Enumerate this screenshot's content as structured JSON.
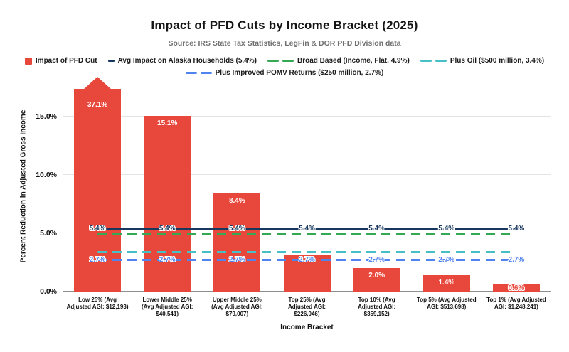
{
  "title": "Impact of PFD Cuts by Income Bracket (2025)",
  "subtitle": "Source: IRS State Tax Statistics, LegFin & DOR PFD Division data",
  "colors": {
    "bar_red": "#E8473C",
    "navy": "#17375E",
    "green": "#34A853",
    "cyan": "#46BFC7",
    "blue": "#4F83EE",
    "grid": "#E4E4E4",
    "axis": "#8F8F8F",
    "subtitle_gray": "#717171"
  },
  "legend": {
    "items": [
      {
        "row": 0,
        "marker": "square",
        "color": "#E8473C",
        "label": "Impact of PFD Cut"
      },
      {
        "row": 0,
        "marker": "line",
        "color": "#17375E",
        "label": "Avg Impact on Alaska Households (5.4%)"
      },
      {
        "row": 0,
        "marker": "dashes",
        "color": "#34A853",
        "label": "Broad Based (Income, Flat, 4.9%)"
      },
      {
        "row": 0,
        "marker": "dashes",
        "color": "#46BFC7",
        "label": "Plus Oil ($500 million, 3.4%)"
      },
      {
        "row": 1,
        "marker": "dashes",
        "color": "#4F83EE",
        "label": "Plus Improved POMV Returns ($250 million, 2.7%)"
      }
    ]
  },
  "axes": {
    "y_title": "Percent Reduction in Adjusted Gross Income",
    "x_title": "Income Bracket"
  },
  "chart_data": {
    "type": "bar",
    "title": "Impact of PFD Cuts by Income Bracket (2025)",
    "xlabel": "Income Bracket",
    "ylabel": "Percent Reduction in Adjusted Gross Income",
    "ylim": [
      0,
      18
    ],
    "grid": true,
    "legend_position": "top",
    "y_ticks": [
      {
        "value": 0,
        "label": "0.0%"
      },
      {
        "value": 5,
        "label": "5.0%"
      },
      {
        "value": 10,
        "label": "10.0%"
      },
      {
        "value": 15,
        "label": "15.0%"
      }
    ],
    "categories": [
      [
        "Low 25% (Avg",
        "Adjusted AGI: $12,193)"
      ],
      [
        "Lower Middle 25%",
        "(Avg Adjusted AGI:",
        "$40,541)"
      ],
      [
        "Upper Middle 25%",
        "(Avg Adjusted AGI:",
        "$79,007)"
      ],
      [
        "Top 25% (Avg",
        "Adjusted AGI:",
        "$226,046)"
      ],
      [
        "Top 10% (Avg",
        "Adjusted AGI:",
        "$359,152)"
      ],
      [
        "Top 5% (Avg Adjusted",
        "AGI: $513,698)"
      ],
      [
        "Top 1% (Avg Adjusted",
        "AGI: $1,248,241)"
      ]
    ],
    "series_name": "Impact of PFD Cut",
    "values": [
      37.1,
      15.1,
      8.4,
      3.1,
      2.0,
      1.4,
      0.6
    ],
    "bar_labels": [
      "37.1%",
      "15.1%",
      "8.4%",
      "",
      "2.0%",
      "1.4%",
      "0.6%"
    ],
    "bar_color": "#E8473C",
    "truncated_bar": {
      "index": 0,
      "shown_up_to_pct": 17.4,
      "indicator": "up-arrow"
    },
    "reference_lines": [
      {
        "name": "Avg Impact on Alaska Households",
        "value": 5.4,
        "style": "solid",
        "color": "#17375E",
        "line_label": "5.4%"
      },
      {
        "name": "Broad Based (Income, Flat)",
        "value": 4.9,
        "style": "dashed",
        "color": "#34A853"
      },
      {
        "name": "Plus Oil ($500 million)",
        "value": 3.4,
        "style": "dashed",
        "color": "#46BFC7"
      },
      {
        "name": "Plus Improved POMV Returns ($250 million)",
        "value": 2.7,
        "style": "dashed",
        "color": "#4F83EE",
        "line_label": "2.7%"
      }
    ]
  }
}
